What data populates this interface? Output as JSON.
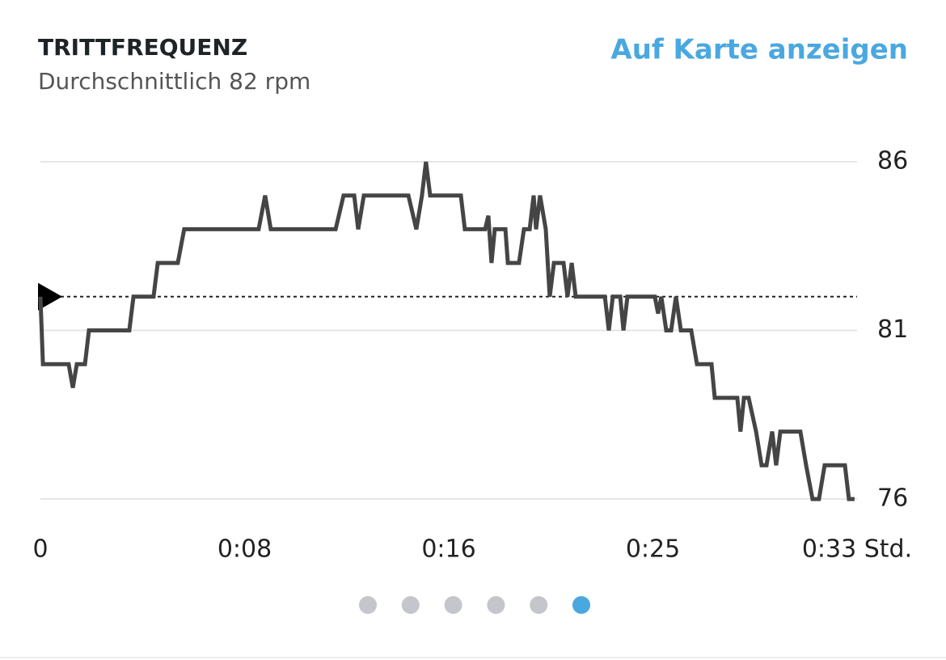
{
  "link": "Auf Karte anzeigen",
  "pager": {
    "count": 6,
    "active": 5,
    "color": "#c4c6cb",
    "active_color": "#4aa8e0"
  },
  "chart_data": {
    "type": "line",
    "title": "TRITTFREQUENZ",
    "subtitle": "Durchschnittlich 82 rpm",
    "average": 82,
    "color": "#454545",
    "grid": true,
    "x": [
      0,
      0.1,
      0.16,
      1.14,
      1.31,
      1.47,
      1.8,
      1.96,
      3.59,
      3.76,
      4.57,
      4.74,
      5.55,
      5.81,
      8.82,
      9.08,
      9.31,
      11.93,
      12.25,
      12.68,
      12.84,
      13.07,
      14.87,
      15.19,
      15.42,
      15.58,
      15.75,
      16.99,
      17.15,
      17.97,
      18.1,
      18.23,
      18.36,
      18.79,
      18.89,
      19.34,
      19.54,
      19.77,
      19.93,
      20.03,
      20.19,
      20.42,
      20.58,
      20.75,
      21.14,
      21.3,
      21.47,
      21.63,
      22.81,
      22.97,
      23.13,
      23.43,
      23.56,
      23.72,
      24.83,
      24.96,
      25.09,
      25.29,
      25.49,
      25.68,
      25.88,
      26.3,
      26.53,
      26.86,
      27.12,
      27.25,
      28.16,
      28.29,
      28.43,
      28.62,
      28.92,
      29.14,
      29.34,
      29.57,
      29.73,
      29.9,
      30.71,
      30.94,
      31.2,
      31.46,
      31.69,
      32.51,
      32.67,
      32.9
    ],
    "values": [
      82,
      80,
      80,
      80,
      79.3,
      80,
      80,
      81,
      81,
      82,
      82,
      83,
      83,
      84,
      84,
      85,
      84,
      84,
      85,
      85,
      84,
      85,
      85,
      84,
      85,
      86,
      85,
      85,
      84,
      84,
      84.4,
      83,
      84,
      84,
      83,
      83,
      84,
      84,
      85,
      84,
      85,
      84,
      82,
      83,
      83,
      82,
      83,
      82,
      82,
      81,
      82,
      82,
      81,
      82,
      82,
      81.5,
      82,
      81,
      81,
      82,
      81,
      81,
      80,
      80,
      80,
      79,
      79,
      78,
      79,
      79,
      78,
      77,
      77,
      78,
      77,
      78,
      78,
      77,
      76,
      76,
      77,
      77,
      76,
      76
    ],
    "xlim": [
      0,
      33
    ],
    "xticks": [
      0,
      {
        "value": 8.25,
        "label": "0:08"
      },
      {
        "value": 16.5,
        "label": "0:16"
      },
      {
        "value": 24.75,
        "label": "0:25"
      },
      {
        "value": 33,
        "label": "0:33 Std."
      }
    ],
    "ylim": [
      76,
      86
    ],
    "yticks": [
      76,
      81,
      86
    ]
  }
}
